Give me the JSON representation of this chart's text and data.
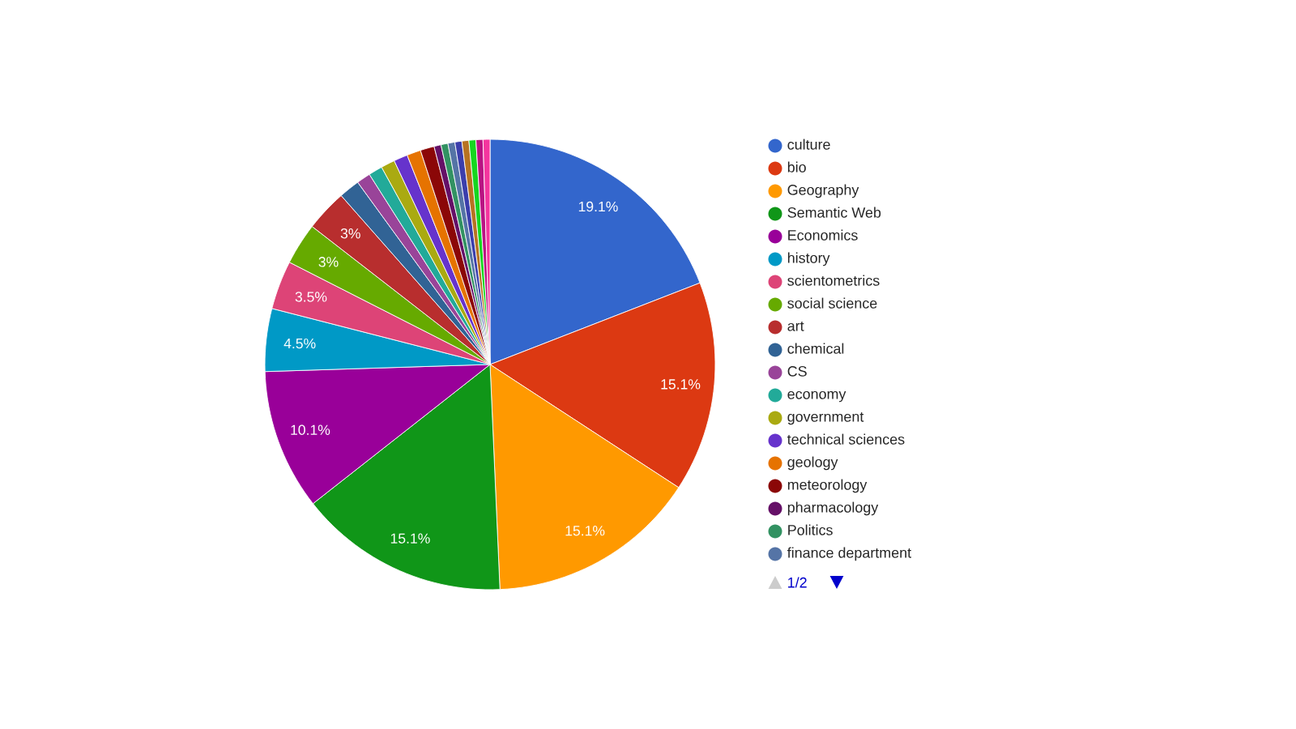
{
  "chart_data": {
    "type": "pie",
    "legend": "right",
    "annotations": [
      "1/2"
    ],
    "categories": [
      "culture",
      "bio",
      "Geography",
      "Semantic Web",
      "Economics",
      "history",
      "scientometrics",
      "social science",
      "art",
      "chemical",
      "CS",
      "economy",
      "government",
      "technical sciences",
      "geology",
      "meteorology",
      "pharmacology",
      "Politics",
      "finance department",
      null,
      null,
      null,
      null,
      null
    ],
    "values": [
      19.1,
      15.1,
      15.1,
      15.1,
      10.1,
      4.5,
      3.5,
      3,
      3,
      1.5,
      1,
      1,
      1,
      1,
      1,
      1,
      0.5,
      0.5,
      0.5,
      0.5,
      0.5,
      0.5,
      0.5,
      0.5
    ],
    "value_labels": [
      "19.1%",
      "15.1%",
      "15.1%",
      "15.1%",
      "10.1%",
      "4.5%",
      "3.5%",
      "3%",
      "3%",
      null,
      null,
      null,
      null,
      null,
      null,
      null,
      null,
      null,
      null,
      null,
      null,
      null,
      null,
      null
    ],
    "colors": [
      "#3366cc",
      "#dc3912",
      "#ff9900",
      "#109618",
      "#990099",
      "#0099c6",
      "#dd4477",
      "#66aa00",
      "#b82e2e",
      "#316395",
      "#994499",
      "#22aa99",
      "#aaaa11",
      "#6633cc",
      "#e67300",
      "#8b0707",
      "#651067",
      "#329262",
      "#5574a6",
      "#3b3eac",
      "#b77322",
      "#16d620",
      "#b91383",
      "#f4359e"
    ]
  }
}
